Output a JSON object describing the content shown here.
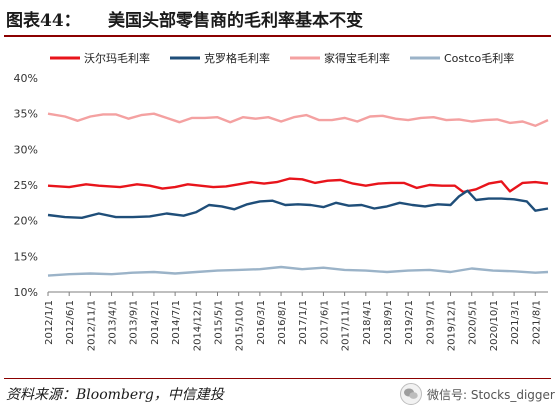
{
  "header": {
    "figure_label": "图表44：",
    "title": "美国头部零售商的毛利率基本不变"
  },
  "footer": {
    "source": "资料来源：Bloomberg，中信建投",
    "watermark": "微信号: Stocks_digger",
    "watermark_icon": "wechat-icon"
  },
  "colors": {
    "rule": "#8b0000",
    "walmart": "#e8141b",
    "kroger": "#1f4e79",
    "homedepot": "#f4a1a1",
    "costco": "#9bb3c8"
  },
  "chart_data": {
    "type": "line",
    "title": "",
    "xlabel": "",
    "ylabel": "",
    "ylim": [
      0.1,
      0.4
    ],
    "y_ticks": [
      "10%",
      "15%",
      "20%",
      "25%",
      "30%",
      "35%",
      "40%"
    ],
    "x_tick_labels": [
      "2012/1/1",
      "2012/6/1",
      "2012/11/1",
      "2013/4/1",
      "2013/9/1",
      "2014/2/1",
      "2014/7/1",
      "2014/12/1",
      "2015/5/1",
      "2015/10/1",
      "2016/3/1",
      "2016/8/1",
      "2017/1/1",
      "2017/6/1",
      "2017/11/1",
      "2018/4/1",
      "2018/9/1",
      "2019/2/1",
      "2019/7/1",
      "2019/12/1",
      "2020/5/1",
      "2020/10/1",
      "2021/3/1",
      "2021/8/1"
    ],
    "x_range": [
      "2012/1/1",
      "2021/11/1"
    ],
    "grid": false,
    "legend_position": "top",
    "series": [
      {
        "name": "沃尔玛毛利率",
        "color": "#e8141b",
        "points": [
          [
            "2012/1/1",
            0.249
          ],
          [
            "2012/6/1",
            0.247
          ],
          [
            "2012/10/1",
            0.251
          ],
          [
            "2013/1/1",
            0.249
          ],
          [
            "2013/6/1",
            0.247
          ],
          [
            "2013/10/1",
            0.251
          ],
          [
            "2014/1/1",
            0.249
          ],
          [
            "2014/4/1",
            0.245
          ],
          [
            "2014/7/1",
            0.247
          ],
          [
            "2014/10/1",
            0.251
          ],
          [
            "2015/1/1",
            0.249
          ],
          [
            "2015/4/1",
            0.247
          ],
          [
            "2015/7/1",
            0.248
          ],
          [
            "2015/10/1",
            0.251
          ],
          [
            "2016/1/1",
            0.254
          ],
          [
            "2016/4/1",
            0.252
          ],
          [
            "2016/7/1",
            0.254
          ],
          [
            "2016/10/1",
            0.259
          ],
          [
            "2017/1/1",
            0.258
          ],
          [
            "2017/4/1",
            0.253
          ],
          [
            "2017/7/1",
            0.256
          ],
          [
            "2017/10/1",
            0.257
          ],
          [
            "2018/1/1",
            0.252
          ],
          [
            "2018/4/1",
            0.249
          ],
          [
            "2018/7/1",
            0.252
          ],
          [
            "2018/10/1",
            0.253
          ],
          [
            "2019/1/1",
            0.253
          ],
          [
            "2019/4/1",
            0.246
          ],
          [
            "2019/7/1",
            0.25
          ],
          [
            "2019/10/1",
            0.249
          ],
          [
            "2020/1/1",
            0.249
          ],
          [
            "2020/3/1",
            0.24
          ],
          [
            "2020/6/1",
            0.244
          ],
          [
            "2020/9/1",
            0.252
          ],
          [
            "2020/12/1",
            0.255
          ],
          [
            "2021/2/1",
            0.241
          ],
          [
            "2021/5/1",
            0.253
          ],
          [
            "2021/8/1",
            0.254
          ],
          [
            "2021/11/1",
            0.252
          ]
        ]
      },
      {
        "name": "克罗格毛利率",
        "color": "#1f4e79",
        "points": [
          [
            "2012/1/1",
            0.208
          ],
          [
            "2012/5/1",
            0.205
          ],
          [
            "2012/9/1",
            0.204
          ],
          [
            "2013/1/1",
            0.21
          ],
          [
            "2013/5/1",
            0.205
          ],
          [
            "2013/9/1",
            0.205
          ],
          [
            "2014/1/1",
            0.206
          ],
          [
            "2014/5/1",
            0.21
          ],
          [
            "2014/9/1",
            0.207
          ],
          [
            "2014/12/1",
            0.212
          ],
          [
            "2015/3/1",
            0.222
          ],
          [
            "2015/6/1",
            0.22
          ],
          [
            "2015/9/1",
            0.216
          ],
          [
            "2015/12/1",
            0.223
          ],
          [
            "2016/3/1",
            0.227
          ],
          [
            "2016/6/1",
            0.228
          ],
          [
            "2016/9/1",
            0.222
          ],
          [
            "2016/12/1",
            0.223
          ],
          [
            "2017/3/1",
            0.222
          ],
          [
            "2017/6/1",
            0.219
          ],
          [
            "2017/9/1",
            0.225
          ],
          [
            "2017/12/1",
            0.221
          ],
          [
            "2018/3/1",
            0.222
          ],
          [
            "2018/6/1",
            0.217
          ],
          [
            "2018/9/1",
            0.22
          ],
          [
            "2018/12/1",
            0.225
          ],
          [
            "2019/3/1",
            0.222
          ],
          [
            "2019/6/1",
            0.22
          ],
          [
            "2019/9/1",
            0.223
          ],
          [
            "2019/12/1",
            0.222
          ],
          [
            "2020/2/1",
            0.234
          ],
          [
            "2020/4/1",
            0.242
          ],
          [
            "2020/6/1",
            0.229
          ],
          [
            "2020/9/1",
            0.231
          ],
          [
            "2020/12/1",
            0.231
          ],
          [
            "2021/3/1",
            0.23
          ],
          [
            "2021/6/1",
            0.227
          ],
          [
            "2021/8/1",
            0.214
          ],
          [
            "2021/11/1",
            0.217
          ]
        ]
      },
      {
        "name": "家得宝毛利率",
        "color": "#f4a1a1",
        "points": [
          [
            "2012/1/1",
            0.35
          ],
          [
            "2012/5/1",
            0.346
          ],
          [
            "2012/8/1",
            0.34
          ],
          [
            "2012/11/1",
            0.346
          ],
          [
            "2013/2/1",
            0.349
          ],
          [
            "2013/5/1",
            0.349
          ],
          [
            "2013/8/1",
            0.343
          ],
          [
            "2013/11/1",
            0.348
          ],
          [
            "2014/2/1",
            0.35
          ],
          [
            "2014/5/1",
            0.344
          ],
          [
            "2014/8/1",
            0.338
          ],
          [
            "2014/11/1",
            0.344
          ],
          [
            "2015/2/1",
            0.344
          ],
          [
            "2015/5/1",
            0.345
          ],
          [
            "2015/8/1",
            0.338
          ],
          [
            "2015/11/1",
            0.345
          ],
          [
            "2016/2/1",
            0.343
          ],
          [
            "2016/5/1",
            0.345
          ],
          [
            "2016/8/1",
            0.339
          ],
          [
            "2016/11/1",
            0.345
          ],
          [
            "2017/2/1",
            0.348
          ],
          [
            "2017/5/1",
            0.341
          ],
          [
            "2017/8/1",
            0.341
          ],
          [
            "2017/11/1",
            0.344
          ],
          [
            "2018/2/1",
            0.339
          ],
          [
            "2018/5/1",
            0.346
          ],
          [
            "2018/8/1",
            0.347
          ],
          [
            "2018/11/1",
            0.343
          ],
          [
            "2019/2/1",
            0.341
          ],
          [
            "2019/5/1",
            0.344
          ],
          [
            "2019/8/1",
            0.345
          ],
          [
            "2019/11/1",
            0.341
          ],
          [
            "2020/2/1",
            0.342
          ],
          [
            "2020/5/1",
            0.339
          ],
          [
            "2020/8/1",
            0.341
          ],
          [
            "2020/11/1",
            0.342
          ],
          [
            "2021/2/1",
            0.337
          ],
          [
            "2021/5/1",
            0.339
          ],
          [
            "2021/8/1",
            0.333
          ],
          [
            "2021/11/1",
            0.341
          ]
        ]
      },
      {
        "name": "Costco毛利率",
        "color": "#9bb3c8",
        "points": [
          [
            "2012/1/1",
            0.123
          ],
          [
            "2012/6/1",
            0.125
          ],
          [
            "2012/11/1",
            0.126
          ],
          [
            "2013/4/1",
            0.125
          ],
          [
            "2013/9/1",
            0.127
          ],
          [
            "2014/2/1",
            0.128
          ],
          [
            "2014/7/1",
            0.126
          ],
          [
            "2014/12/1",
            0.128
          ],
          [
            "2015/5/1",
            0.13
          ],
          [
            "2015/10/1",
            0.131
          ],
          [
            "2016/3/1",
            0.132
          ],
          [
            "2016/8/1",
            0.135
          ],
          [
            "2017/1/1",
            0.132
          ],
          [
            "2017/6/1",
            0.134
          ],
          [
            "2017/11/1",
            0.131
          ],
          [
            "2018/4/1",
            0.13
          ],
          [
            "2018/9/1",
            0.128
          ],
          [
            "2019/2/1",
            0.13
          ],
          [
            "2019/7/1",
            0.131
          ],
          [
            "2019/12/1",
            0.128
          ],
          [
            "2020/5/1",
            0.133
          ],
          [
            "2020/10/1",
            0.13
          ],
          [
            "2021/3/1",
            0.129
          ],
          [
            "2021/8/1",
            0.127
          ],
          [
            "2021/11/1",
            0.128
          ]
        ]
      }
    ]
  }
}
